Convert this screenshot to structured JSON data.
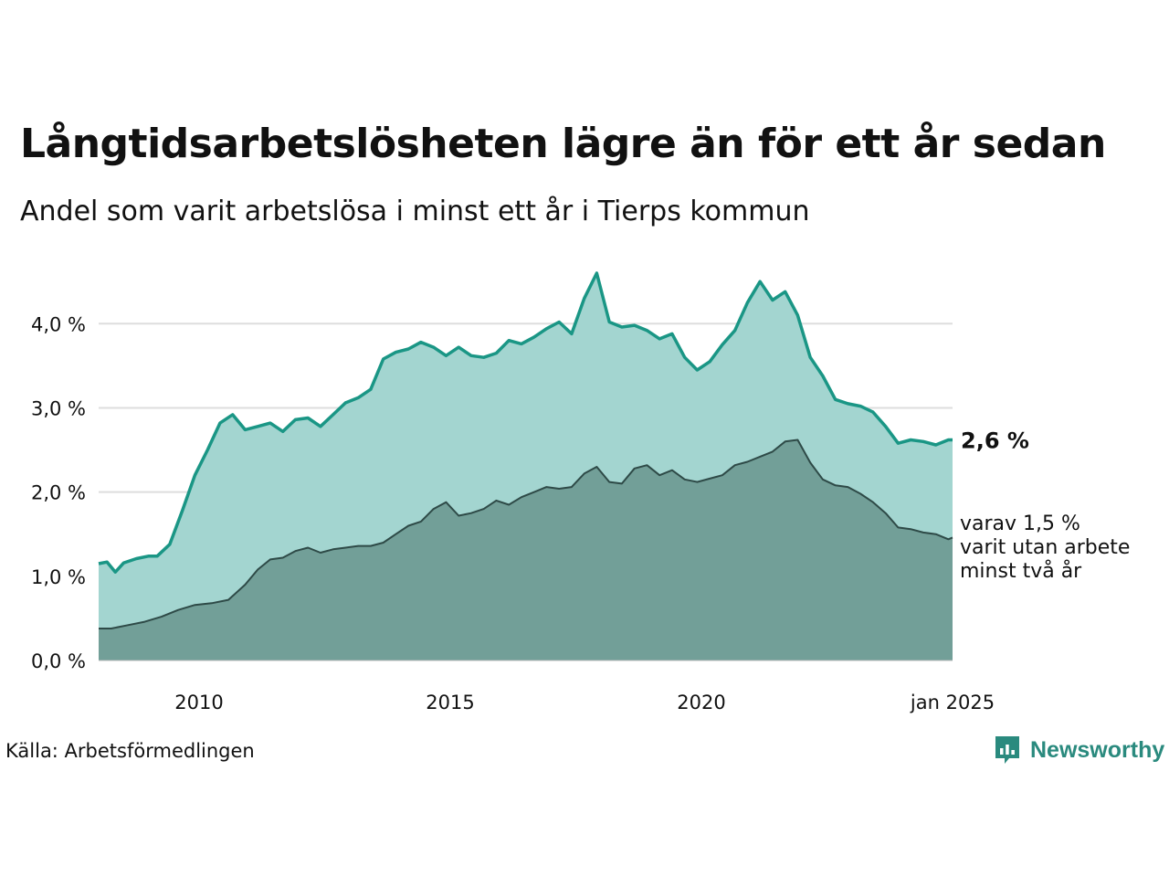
{
  "title": "Långtidsarbetslösheten lägre än för ett år sedan",
  "subtitle": "Andel som varit arbetslösa i minst ett år i Tierps kommun",
  "source": "Källa: Arbetsförmedlingen",
  "brand": "Newsworthy",
  "colors": {
    "total_line": "#1a9685",
    "total_fill": "#a3d5d0",
    "long_line": "#2e4a47",
    "long_fill": "#729f98",
    "grid": "#dddddd",
    "brand": "#2a8a7e"
  },
  "chart_data": {
    "type": "area",
    "x_unit": "month",
    "x_start": "2008-01",
    "x_end": "2025-01",
    "y_unit": "percent",
    "ylim": [
      0,
      4.6
    ],
    "yticks": [
      0,
      1,
      2,
      3,
      4
    ],
    "ytick_labels": [
      "0,0 %",
      "1,0 %",
      "2,0 %",
      "3,0 %",
      "4,0 %"
    ],
    "xticks": [
      {
        "x": "2010-01",
        "label": "2010"
      },
      {
        "x": "2015-01",
        "label": "2015"
      },
      {
        "x": "2020-01",
        "label": "2020"
      },
      {
        "x": "2025-01",
        "label": "jan 2025"
      }
    ],
    "grid": true,
    "series": [
      {
        "key": "total",
        "label": "2,6 %",
        "points": [
          [
            "2008-01",
            1.15
          ],
          [
            "2008-03",
            1.17
          ],
          [
            "2008-05",
            1.05
          ],
          [
            "2008-07",
            1.16
          ],
          [
            "2008-10",
            1.21
          ],
          [
            "2009-01",
            1.24
          ],
          [
            "2009-03",
            1.24
          ],
          [
            "2009-06",
            1.38
          ],
          [
            "2009-09",
            1.78
          ],
          [
            "2009-12",
            2.2
          ],
          [
            "2010-03",
            2.5
          ],
          [
            "2010-06",
            2.82
          ],
          [
            "2010-09",
            2.92
          ],
          [
            "2010-12",
            2.74
          ],
          [
            "2011-03",
            2.78
          ],
          [
            "2011-06",
            2.82
          ],
          [
            "2011-09",
            2.72
          ],
          [
            "2011-12",
            2.86
          ],
          [
            "2012-03",
            2.88
          ],
          [
            "2012-06",
            2.78
          ],
          [
            "2012-09",
            2.92
          ],
          [
            "2012-12",
            3.06
          ],
          [
            "2013-03",
            3.12
          ],
          [
            "2013-06",
            3.22
          ],
          [
            "2013-09",
            3.58
          ],
          [
            "2013-12",
            3.66
          ],
          [
            "2014-03",
            3.7
          ],
          [
            "2014-06",
            3.78
          ],
          [
            "2014-09",
            3.72
          ],
          [
            "2014-12",
            3.62
          ],
          [
            "2015-03",
            3.72
          ],
          [
            "2015-06",
            3.62
          ],
          [
            "2015-09",
            3.6
          ],
          [
            "2015-12",
            3.65
          ],
          [
            "2016-03",
            3.8
          ],
          [
            "2016-06",
            3.76
          ],
          [
            "2016-09",
            3.84
          ],
          [
            "2016-12",
            3.94
          ],
          [
            "2017-03",
            4.02
          ],
          [
            "2017-06",
            3.88
          ],
          [
            "2017-09",
            4.3
          ],
          [
            "2017-12",
            4.6
          ],
          [
            "2018-03",
            4.02
          ],
          [
            "2018-06",
            3.96
          ],
          [
            "2018-09",
            3.98
          ],
          [
            "2018-12",
            3.92
          ],
          [
            "2019-03",
            3.82
          ],
          [
            "2019-06",
            3.88
          ],
          [
            "2019-09",
            3.6
          ],
          [
            "2019-12",
            3.45
          ],
          [
            "2020-03",
            3.55
          ],
          [
            "2020-06",
            3.75
          ],
          [
            "2020-09",
            3.92
          ],
          [
            "2020-12",
            4.25
          ],
          [
            "2021-03",
            4.5
          ],
          [
            "2021-06",
            4.28
          ],
          [
            "2021-09",
            4.38
          ],
          [
            "2021-12",
            4.1
          ],
          [
            "2022-03",
            3.6
          ],
          [
            "2022-06",
            3.38
          ],
          [
            "2022-09",
            3.1
          ],
          [
            "2022-12",
            3.05
          ],
          [
            "2023-03",
            3.02
          ],
          [
            "2023-06",
            2.95
          ],
          [
            "2023-09",
            2.78
          ],
          [
            "2023-12",
            2.58
          ],
          [
            "2024-03",
            2.62
          ],
          [
            "2024-06",
            2.6
          ],
          [
            "2024-09",
            2.56
          ],
          [
            "2024-12",
            2.62
          ],
          [
            "2025-01",
            2.62
          ]
        ]
      },
      {
        "key": "long",
        "label_lines": [
          "varav 1,5 %",
          "varit utan arbete",
          "minst två år"
        ],
        "points": [
          [
            "2008-01",
            0.38
          ],
          [
            "2008-04",
            0.38
          ],
          [
            "2008-08",
            0.42
          ],
          [
            "2008-12",
            0.46
          ],
          [
            "2009-04",
            0.52
          ],
          [
            "2009-08",
            0.6
          ],
          [
            "2009-12",
            0.66
          ],
          [
            "2010-04",
            0.68
          ],
          [
            "2010-08",
            0.72
          ],
          [
            "2010-12",
            0.9
          ],
          [
            "2011-03",
            1.08
          ],
          [
            "2011-06",
            1.2
          ],
          [
            "2011-09",
            1.22
          ],
          [
            "2011-12",
            1.3
          ],
          [
            "2012-03",
            1.34
          ],
          [
            "2012-06",
            1.28
          ],
          [
            "2012-09",
            1.32
          ],
          [
            "2012-12",
            1.34
          ],
          [
            "2013-03",
            1.36
          ],
          [
            "2013-06",
            1.36
          ],
          [
            "2013-09",
            1.4
          ],
          [
            "2013-12",
            1.5
          ],
          [
            "2014-03",
            1.6
          ],
          [
            "2014-06",
            1.65
          ],
          [
            "2014-09",
            1.8
          ],
          [
            "2014-12",
            1.88
          ],
          [
            "2015-03",
            1.72
          ],
          [
            "2015-06",
            1.75
          ],
          [
            "2015-09",
            1.8
          ],
          [
            "2015-12",
            1.9
          ],
          [
            "2016-03",
            1.85
          ],
          [
            "2016-06",
            1.94
          ],
          [
            "2016-09",
            2.0
          ],
          [
            "2016-12",
            2.06
          ],
          [
            "2017-03",
            2.04
          ],
          [
            "2017-06",
            2.06
          ],
          [
            "2017-09",
            2.22
          ],
          [
            "2017-12",
            2.3
          ],
          [
            "2018-03",
            2.12
          ],
          [
            "2018-06",
            2.1
          ],
          [
            "2018-09",
            2.28
          ],
          [
            "2018-12",
            2.32
          ],
          [
            "2019-03",
            2.2
          ],
          [
            "2019-06",
            2.26
          ],
          [
            "2019-09",
            2.15
          ],
          [
            "2019-12",
            2.12
          ],
          [
            "2020-03",
            2.16
          ],
          [
            "2020-06",
            2.2
          ],
          [
            "2020-09",
            2.32
          ],
          [
            "2020-12",
            2.36
          ],
          [
            "2021-03",
            2.42
          ],
          [
            "2021-06",
            2.48
          ],
          [
            "2021-09",
            2.6
          ],
          [
            "2021-12",
            2.62
          ],
          [
            "2022-03",
            2.35
          ],
          [
            "2022-06",
            2.15
          ],
          [
            "2022-09",
            2.08
          ],
          [
            "2022-12",
            2.06
          ],
          [
            "2023-03",
            1.98
          ],
          [
            "2023-06",
            1.88
          ],
          [
            "2023-09",
            1.75
          ],
          [
            "2023-12",
            1.58
          ],
          [
            "2024-03",
            1.56
          ],
          [
            "2024-06",
            1.52
          ],
          [
            "2024-09",
            1.5
          ],
          [
            "2024-12",
            1.44
          ],
          [
            "2025-01",
            1.46
          ]
        ]
      }
    ]
  }
}
